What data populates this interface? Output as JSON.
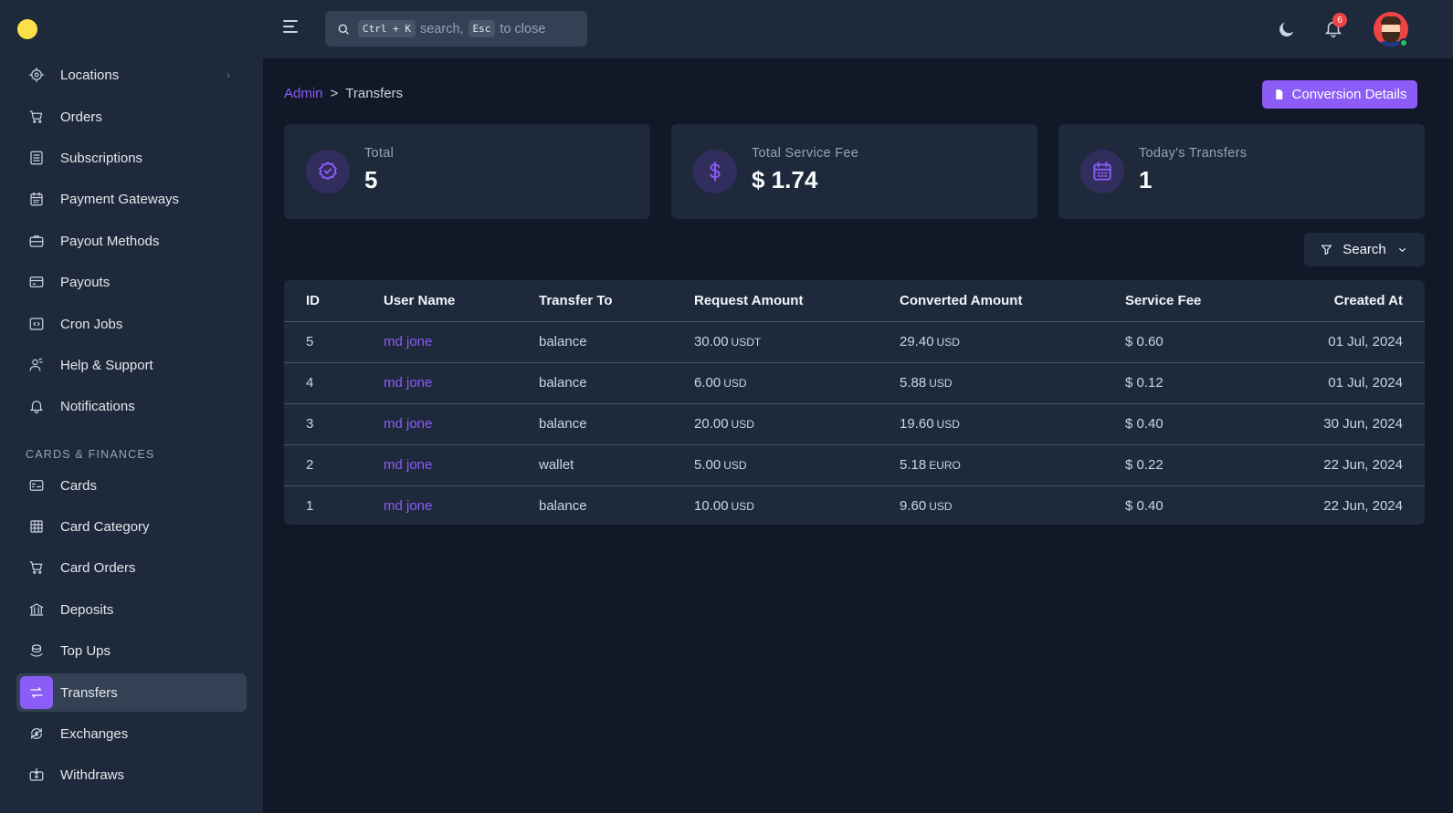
{
  "sidebar": {
    "items": [
      {
        "label": "Locations",
        "icon": "location-icon",
        "has_chevron": true
      },
      {
        "label": "Orders",
        "icon": "cart-icon"
      },
      {
        "label": "Subscriptions",
        "icon": "list-icon"
      },
      {
        "label": "Payment Gateways",
        "icon": "calendar-icon"
      },
      {
        "label": "Payout Methods",
        "icon": "briefcase-icon"
      },
      {
        "label": "Payouts",
        "icon": "credit-card-icon"
      },
      {
        "label": "Cron Jobs",
        "icon": "code-window-icon"
      },
      {
        "label": "Help & Support",
        "icon": "support-icon"
      },
      {
        "label": "Notifications",
        "icon": "bell-icon"
      },
      {
        "label": "Cards",
        "icon": "card-icon"
      },
      {
        "label": "Card Category",
        "icon": "grid-icon"
      },
      {
        "label": "Card Orders",
        "icon": "cart-icon"
      },
      {
        "label": "Deposits",
        "icon": "bank-icon"
      },
      {
        "label": "Top Ups",
        "icon": "coins-icon"
      },
      {
        "label": "Transfers",
        "icon": "transfer-icon",
        "active": true
      },
      {
        "label": "Exchanges",
        "icon": "exchange-icon"
      },
      {
        "label": "Withdraws",
        "icon": "withdraw-icon"
      }
    ],
    "section_label": "CARDS & FINANCES",
    "chevron": "›"
  },
  "header": {
    "search": {
      "kbd1": "Ctrl + K",
      "text1": "search,",
      "kbd2": "Esc",
      "text2": "to close"
    },
    "notification_count": "6"
  },
  "breadcrumb": {
    "parent": "Admin",
    "separator": ">",
    "current": "Transfers"
  },
  "actions": {
    "conversion_details": "Conversion Details",
    "search_filter": "Search"
  },
  "stats": [
    {
      "label": "Total",
      "value": "5",
      "icon": "badge-check-icon"
    },
    {
      "label": "Total Service Fee",
      "value": "$ 1.74",
      "icon": "dollar-icon"
    },
    {
      "label": "Today's Transfers",
      "value": "1",
      "icon": "calendar-icon"
    }
  ],
  "table": {
    "headers": [
      "ID",
      "User Name",
      "Transfer To",
      "Request Amount",
      "Converted Amount",
      "Service Fee",
      "Created At"
    ],
    "rows": [
      {
        "id": "5",
        "user": "md jone",
        "to": "balance",
        "req": "30.00",
        "req_cur": "USDT",
        "conv": "29.40",
        "conv_cur": "USD",
        "fee": "$ 0.60",
        "date": "01 Jul, 2024"
      },
      {
        "id": "4",
        "user": "md jone",
        "to": "balance",
        "req": "6.00",
        "req_cur": "USD",
        "conv": "5.88",
        "conv_cur": "USD",
        "fee": "$ 0.12",
        "date": "01 Jul, 2024"
      },
      {
        "id": "3",
        "user": "md jone",
        "to": "balance",
        "req": "20.00",
        "req_cur": "USD",
        "conv": "19.60",
        "conv_cur": "USD",
        "fee": "$ 0.40",
        "date": "30 Jun, 2024"
      },
      {
        "id": "2",
        "user": "md jone",
        "to": "wallet",
        "req": "5.00",
        "req_cur": "USD",
        "conv": "5.18",
        "conv_cur": "EURO",
        "fee": "$ 0.22",
        "date": "22 Jun, 2024"
      },
      {
        "id": "1",
        "user": "md jone",
        "to": "balance",
        "req": "10.00",
        "req_cur": "USD",
        "conv": "9.60",
        "conv_cur": "USD",
        "fee": "$ 0.40",
        "date": "22 Jun, 2024"
      }
    ]
  },
  "colors": {
    "accent": "#8b5cf6",
    "background": "#111827",
    "surface": "#1e293b"
  }
}
